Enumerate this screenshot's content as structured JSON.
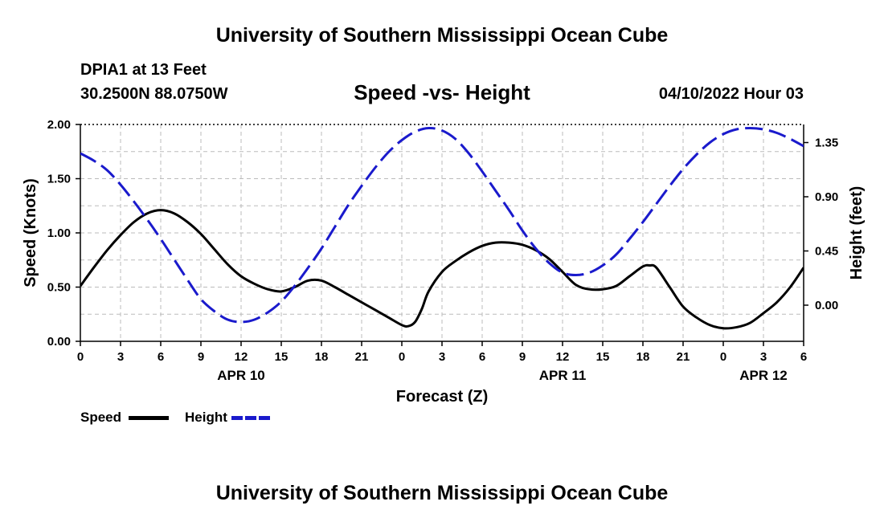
{
  "header": {
    "title": "University of Southern Mississippi Ocean Cube",
    "station": "DPIA1 at 13 Feet",
    "location": "30.2500N  88.0750W",
    "subtitle": "Speed -vs- Height",
    "datetime": "04/10/2022 Hour 03"
  },
  "footer": {
    "title": "University of Southern Mississippi Ocean Cube"
  },
  "chart_data": {
    "type": "line",
    "title": "Speed -vs- Height",
    "xlabel": "Forecast (Z)",
    "ylabel": "Speed (Knots)",
    "y2label": "Height (feet)",
    "grid": true,
    "xlim": [
      0,
      54
    ],
    "ylim": [
      0,
      2.0
    ],
    "y2lim": [
      -0.3,
      1.5
    ],
    "x_ticks": [
      0,
      3,
      6,
      9,
      12,
      15,
      18,
      21,
      24,
      27,
      30,
      33,
      36,
      39,
      42,
      45,
      48,
      51,
      54
    ],
    "x_tick_labels": [
      "0",
      "3",
      "6",
      "9",
      "12",
      "15",
      "18",
      "21",
      "0",
      "3",
      "6",
      "9",
      "12",
      "15",
      "18",
      "21",
      "0",
      "3",
      "6"
    ],
    "y_ticks": [
      0,
      0.5,
      1.0,
      1.5,
      2.0
    ],
    "y_tick_labels": [
      "0.00",
      "0.50",
      "1.00",
      "1.50",
      "2.00"
    ],
    "y2_ticks": [
      0,
      0.45,
      0.9,
      1.35
    ],
    "y2_tick_labels": [
      "0.00",
      "0.45",
      "0.90",
      "1.35"
    ],
    "date_labels": [
      {
        "x": 12,
        "label": "APR 10"
      },
      {
        "x": 36,
        "label": "APR 11"
      },
      {
        "x": 51,
        "label": "APR 12"
      }
    ],
    "series": [
      {
        "name": "Speed",
        "axis": "left",
        "color": "#000000",
        "style": "solid",
        "x": [
          0,
          1,
          2,
          3,
          4,
          5,
          6,
          7,
          8,
          9,
          10,
          11,
          12,
          13,
          14,
          15,
          16,
          17,
          18,
          19,
          20,
          21,
          22,
          23,
          24,
          24.5,
          25,
          25.5,
          26,
          27,
          28,
          29,
          30,
          31,
          32,
          33,
          34,
          35,
          36,
          37,
          38,
          39,
          40,
          41,
          42,
          42.5,
          43,
          44,
          45,
          46,
          47,
          48,
          49,
          50,
          51,
          52,
          53,
          54
        ],
        "values": [
          0.51,
          0.68,
          0.84,
          0.98,
          1.1,
          1.18,
          1.21,
          1.18,
          1.1,
          0.99,
          0.85,
          0.71,
          0.6,
          0.53,
          0.48,
          0.46,
          0.5,
          0.56,
          0.56,
          0.5,
          0.43,
          0.36,
          0.29,
          0.22,
          0.15,
          0.14,
          0.18,
          0.3,
          0.46,
          0.64,
          0.74,
          0.82,
          0.88,
          0.91,
          0.91,
          0.89,
          0.84,
          0.76,
          0.64,
          0.52,
          0.48,
          0.48,
          0.51,
          0.6,
          0.69,
          0.7,
          0.68,
          0.5,
          0.32,
          0.22,
          0.15,
          0.12,
          0.13,
          0.17,
          0.26,
          0.36,
          0.5,
          0.68
        ]
      },
      {
        "name": "Height",
        "axis": "right",
        "color": "#1a1acc",
        "style": "dashed",
        "x": [
          0,
          1,
          2,
          3,
          4,
          5,
          6,
          7,
          8,
          9,
          10,
          11,
          12,
          13,
          14,
          15,
          16,
          17,
          18,
          19,
          20,
          21,
          22,
          23,
          24,
          25,
          26,
          27,
          28,
          29,
          30,
          31,
          32,
          33,
          34,
          35,
          36,
          37,
          38,
          39,
          40,
          41,
          42,
          43,
          44,
          45,
          46,
          47,
          48,
          49,
          50,
          51,
          52,
          53,
          54
        ],
        "values": [
          1.26,
          1.2,
          1.12,
          1.0,
          0.86,
          0.71,
          0.55,
          0.38,
          0.21,
          0.05,
          -0.05,
          -0.12,
          -0.14,
          -0.12,
          -0.06,
          0.03,
          0.16,
          0.31,
          0.47,
          0.65,
          0.83,
          0.99,
          1.14,
          1.27,
          1.37,
          1.44,
          1.47,
          1.45,
          1.38,
          1.26,
          1.11,
          0.95,
          0.79,
          0.62,
          0.47,
          0.35,
          0.27,
          0.25,
          0.27,
          0.33,
          0.42,
          0.55,
          0.69,
          0.84,
          0.99,
          1.13,
          1.25,
          1.35,
          1.42,
          1.46,
          1.47,
          1.46,
          1.43,
          1.38,
          1.32
        ]
      }
    ]
  },
  "legend": {
    "speed_label": "Speed",
    "height_label": "Height"
  }
}
